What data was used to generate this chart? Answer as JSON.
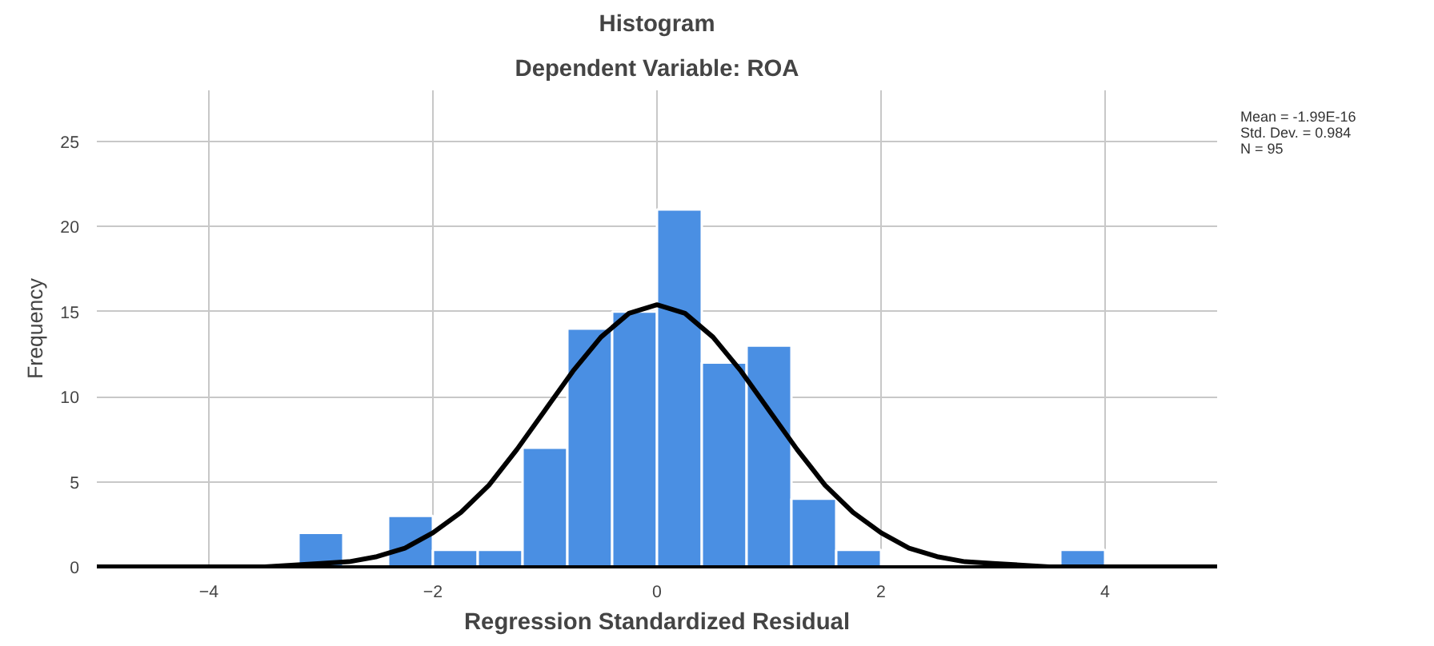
{
  "chart_data": {
    "type": "histogram",
    "title": "Histogram",
    "subtitle": "Dependent Variable: ROA",
    "xlabel": "Regression Standardized Residual",
    "ylabel": "Frequency",
    "bins": [
      -3.2,
      -2.8,
      -2.4,
      -2.0,
      -1.6,
      -1.2,
      -0.8,
      -0.4,
      0,
      0.4,
      0.8,
      1.2,
      1.6,
      2.0,
      2.4,
      2.8,
      3.2,
      3.6,
      4.0
    ],
    "values": [
      2,
      0,
      3,
      1,
      1,
      7,
      14,
      15,
      21,
      12,
      13,
      4,
      1,
      0,
      0,
      0,
      0,
      1
    ],
    "color": "#4a8fe3",
    "series": [
      {
        "type": "line",
        "color": "#000000",
        "x": [
          -5,
          -4,
          -3.5,
          -3,
          -2.75,
          -2.5,
          -2.25,
          -2,
          -1.75,
          -1.5,
          -1.25,
          -1,
          -0.75,
          -0.5,
          -0.25,
          0,
          0.25,
          0.5,
          0.75,
          1,
          1.25,
          1.5,
          1.75,
          2,
          2.25,
          2.5,
          2.75,
          3,
          3.5,
          4,
          5
        ],
        "values": [
          0,
          0,
          0,
          0.2,
          0.3,
          0.6,
          1.1,
          2,
          3.2,
          4.8,
          6.9,
          9.2,
          11.5,
          13.5,
          14.9,
          15.4,
          14.9,
          13.5,
          11.5,
          9.2,
          6.9,
          4.8,
          3.2,
          2,
          1.1,
          0.6,
          0.3,
          0.2,
          0,
          0,
          0
        ]
      }
    ],
    "xlim": [
      -5,
      5
    ],
    "xticks": [
      -4,
      -2,
      0,
      2,
      4
    ],
    "ylim": [
      0,
      28
    ],
    "yticks": [
      0,
      5,
      10,
      15,
      20,
      25
    ],
    "grid": true,
    "annotations": [
      "Mean = -1.99E-16",
      "Std. Dev. = 0.984",
      "N = 95"
    ]
  }
}
